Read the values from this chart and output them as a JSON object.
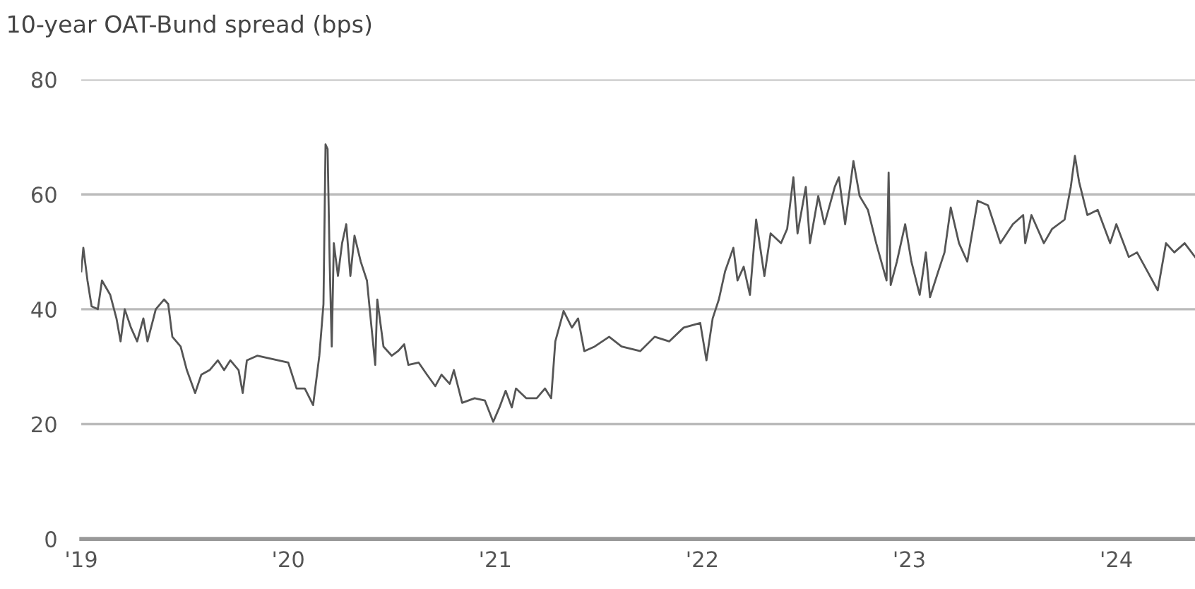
{
  "chart_data": {
    "type": "line",
    "title": "10-year OAT-Bund spread (bps)",
    "xlim": [
      2019,
      2024.38
    ],
    "ylim": [
      0,
      80
    ],
    "xticks": [
      {
        "value": 2019,
        "label": "'19"
      },
      {
        "value": 2020,
        "label": "'20"
      },
      {
        "value": 2021,
        "label": "'21"
      },
      {
        "value": 2022,
        "label": "'22"
      },
      {
        "value": 2023,
        "label": "'23"
      },
      {
        "value": 2024,
        "label": "'24"
      }
    ],
    "yticks": [
      0,
      20,
      40,
      60,
      80
    ],
    "grid": "y",
    "legend": false,
    "marker": "none",
    "line_style": "solid",
    "series": [
      {
        "color": "#555555",
        "x": [
          2019.0,
          2019.01,
          2019.03,
          2019.05,
          2019.08,
          2019.1,
          2019.14,
          2019.17,
          2019.19,
          2019.21,
          2019.24,
          2019.27,
          2019.3,
          2019.32,
          2019.36,
          2019.4,
          2019.42,
          2019.44,
          2019.48,
          2019.51,
          2019.55,
          2019.58,
          2019.62,
          2019.66,
          2019.69,
          2019.72,
          2019.76,
          2019.78,
          2019.8,
          2019.85,
          2019.9,
          2019.95,
          2020.0,
          2020.04,
          2020.08,
          2020.12,
          2020.15,
          2020.17,
          2020.18,
          2020.19,
          2020.2,
          2020.21,
          2020.22,
          2020.24,
          2020.26,
          2020.28,
          2020.3,
          2020.32,
          2020.35,
          2020.38,
          2020.4,
          2020.42,
          2020.43,
          2020.46,
          2020.5,
          2020.53,
          2020.56,
          2020.58,
          2020.63,
          2020.67,
          2020.71,
          2020.74,
          2020.78,
          2020.8,
          2020.84,
          2020.9,
          2020.95,
          2020.99,
          2021.02,
          2021.05,
          2021.08,
          2021.1,
          2021.15,
          2021.2,
          2021.24,
          2021.27,
          2021.29,
          2021.33,
          2021.37,
          2021.4,
          2021.43,
          2021.48,
          2021.55,
          2021.61,
          2021.7,
          2021.77,
          2021.84,
          2021.91,
          2021.99,
          2022.02,
          2022.05,
          2022.08,
          2022.11,
          2022.15,
          2022.17,
          2022.2,
          2022.23,
          2022.26,
          2022.3,
          2022.33,
          2022.38,
          2022.41,
          2022.44,
          2022.46,
          2022.5,
          2022.52,
          2022.56,
          2022.59,
          2022.64,
          2022.66,
          2022.69,
          2022.73,
          2022.76,
          2022.8,
          2022.84,
          2022.89,
          2022.9,
          2022.91,
          2022.94,
          2022.98,
          2023.01,
          2023.05,
          2023.08,
          2023.1,
          2023.14,
          2023.17,
          2023.2,
          2023.24,
          2023.28,
          2023.33,
          2023.38,
          2023.41,
          2023.44,
          2023.5,
          2023.55,
          2023.56,
          2023.59,
          2023.65,
          2023.69,
          2023.75,
          2023.78,
          2023.8,
          2023.82,
          2023.86,
          2023.91,
          2023.97,
          2024.0,
          2024.06,
          2024.1,
          2024.15,
          2024.2,
          2024.24,
          2024.28,
          2024.33,
          2024.38
        ],
        "values": [
          46.6,
          50.7,
          45,
          40.5,
          40,
          45,
          42.5,
          38.4,
          34.4,
          40,
          36.8,
          34.4,
          38.4,
          34.4,
          40,
          41.7,
          40.9,
          35.2,
          33.5,
          29.4,
          25.4,
          28.6,
          29.4,
          31.1,
          29.4,
          31.1,
          29.4,
          25.4,
          31.1,
          31.9,
          31.5,
          31.1,
          30.7,
          26.2,
          26.2,
          23.3,
          31.9,
          40.9,
          68.7,
          67.9,
          48.3,
          33.5,
          51.5,
          45.8,
          51.5,
          54.8,
          45.8,
          52.8,
          48.3,
          45,
          37.6,
          30.3,
          41.7,
          33.5,
          31.9,
          32.7,
          33.9,
          30.3,
          30.7,
          28.6,
          26.6,
          28.6,
          27,
          29.4,
          23.7,
          24.5,
          24.1,
          20.4,
          22.9,
          25.8,
          22.9,
          26.2,
          24.5,
          24.5,
          26.2,
          24.5,
          34.4,
          39.7,
          36.8,
          38.4,
          32.7,
          33.5,
          35.2,
          33.5,
          32.7,
          35.2,
          34.4,
          36.8,
          37.6,
          31.1,
          38.4,
          41.7,
          46.6,
          50.7,
          45,
          47.4,
          42.5,
          55.6,
          45.8,
          53.2,
          51.5,
          54,
          63,
          53.2,
          61.3,
          51.5,
          59.7,
          54.8,
          61.3,
          63,
          54.8,
          65.8,
          59.7,
          57.3,
          51.5,
          45,
          63.8,
          44.2,
          48.3,
          54.8,
          48.3,
          42.5,
          49.9,
          42.1,
          46.6,
          49.9,
          57.7,
          51.5,
          48.3,
          58.9,
          58.1,
          54.8,
          51.5,
          54.8,
          56.4,
          51.5,
          56.4,
          51.5,
          54,
          55.6,
          61.3,
          66.7,
          62.2,
          56.4,
          57.3,
          51.5,
          54.8,
          49.1,
          49.9,
          46.6,
          43.3,
          51.5,
          49.9,
          51.5,
          49.1
        ]
      }
    ]
  }
}
